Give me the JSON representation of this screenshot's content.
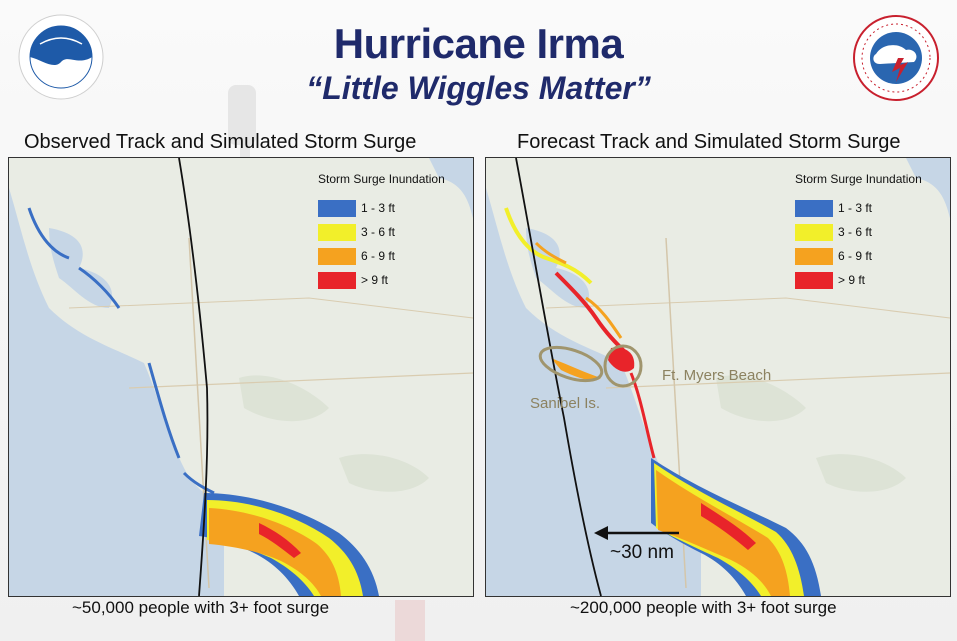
{
  "header": {
    "title": "Hurricane Irma",
    "subtitle": "“Little Wiggles Matter”"
  },
  "logos": {
    "left": "noaa-logo",
    "right": "national-weather-service-logo"
  },
  "legend": {
    "title": "Storm Surge Inundation",
    "items": [
      {
        "label": "1 - 3  ft",
        "color": "#3a6fc4"
      },
      {
        "label": "3 - 6 ft",
        "color": "#f2ef2a"
      },
      {
        "label": "6 - 9 ft",
        "color": "#f5a21f"
      },
      {
        "label": "> 9 ft",
        "color": "#e8242a"
      }
    ]
  },
  "panels": {
    "observed": {
      "title": "Observed Track and Simulated Storm Surge",
      "caption": "~50,000 people with 3+ foot surge"
    },
    "forecast": {
      "title": "Forecast Track and Simulated Storm Surge",
      "caption": "~200,000 people with 3+ foot surge",
      "labels": {
        "sanibel": "Sanibel Is.",
        "ft_myers": "Ft. Myers Beach",
        "distance": "~30 nm"
      }
    }
  },
  "colors": {
    "water": "#c6d6e6",
    "land": "#e9ece4",
    "title": "#1f2a6b",
    "annotation": "#8c8260"
  }
}
